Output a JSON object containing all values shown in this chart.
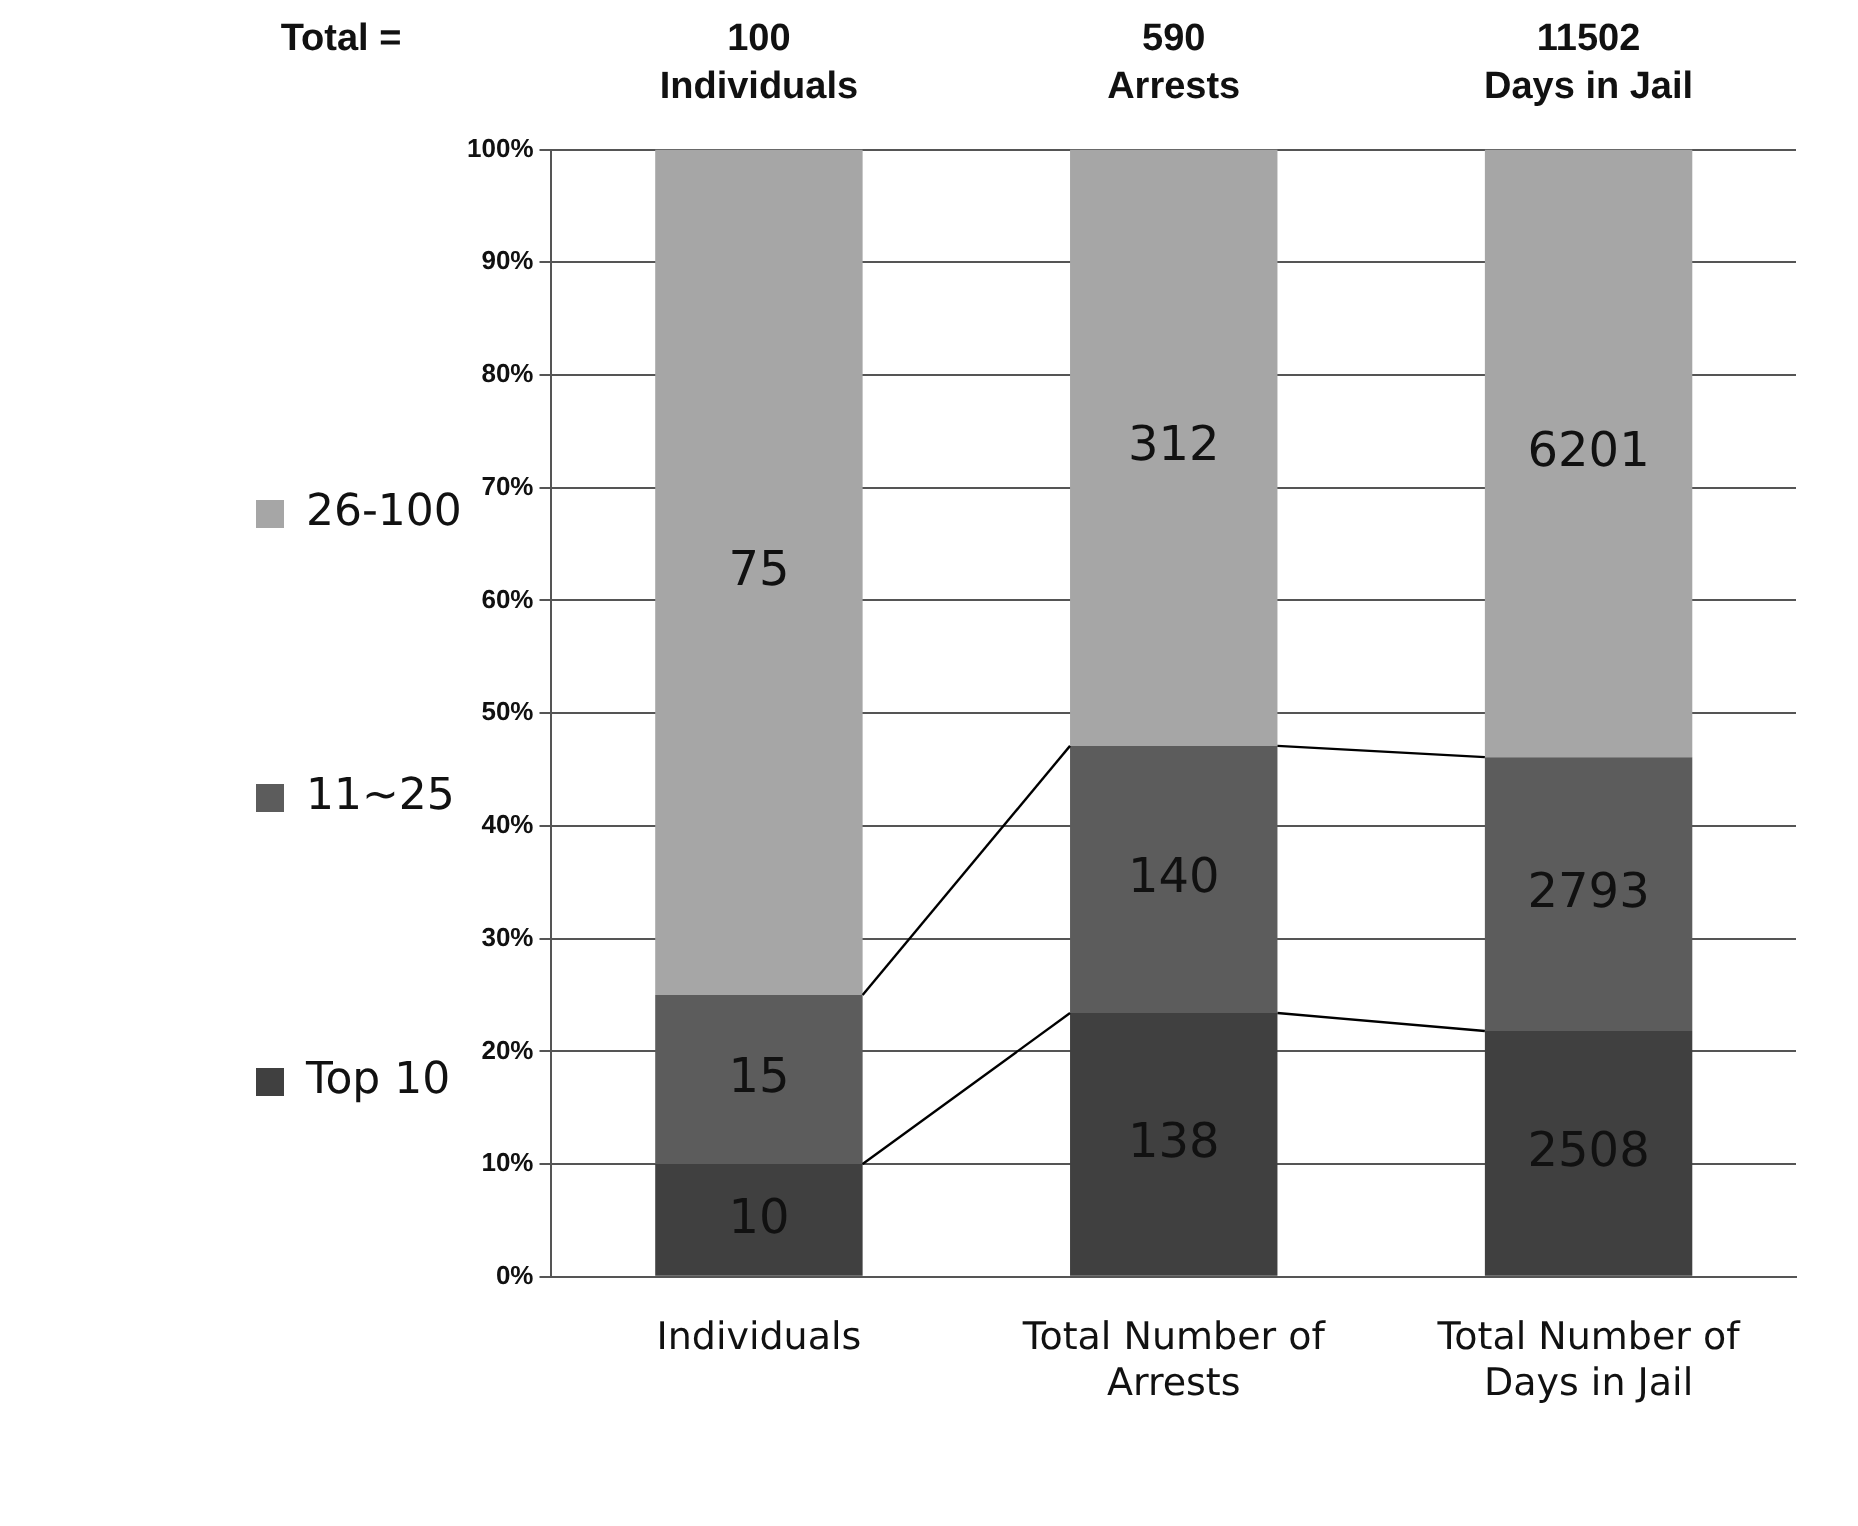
{
  "chart_data": {
    "type": "bar",
    "stacked": true,
    "categories": [
      "Individuals",
      "Total Number of Arrests",
      "Total Number of Days in Jail"
    ],
    "series": [
      {
        "name": "Top 10",
        "color": "#404040",
        "values": [
          10,
          23.4,
          21.8
        ]
      },
      {
        "name": "11~25",
        "color": "#5c5c5c",
        "values": [
          15,
          23.7,
          24.3
        ]
      },
      {
        "name": "26-100",
        "color": "#a6a6a6",
        "values": [
          75,
          52.9,
          53.9
        ]
      }
    ],
    "ylim": [
      0,
      100
    ],
    "yticks": [
      {
        "value": 0,
        "label": "0%"
      },
      {
        "value": 10,
        "label": "10%"
      },
      {
        "value": 20,
        "label": "20%"
      },
      {
        "value": 30,
        "label": "30%"
      },
      {
        "value": 40,
        "label": "40%"
      },
      {
        "value": 50,
        "label": "50%"
      },
      {
        "value": 60,
        "label": "60%"
      },
      {
        "value": 70,
        "label": "70%"
      },
      {
        "value": 80,
        "label": "80%"
      },
      {
        "value": 90,
        "label": "90%"
      },
      {
        "value": 100,
        "label": "100%"
      }
    ],
    "grid": "y",
    "legend": "left",
    "annotations": [
      "Total =",
      "100\nIndividuals",
      "590\nArrests",
      "11502\nDays in Jail",
      {
        "text": "10",
        "x": "Individuals",
        "y": 10
      },
      {
        "text": "15",
        "x": "Individuals",
        "y": 25
      },
      "75",
      {
        "text": "138",
        "x": "Total Number of Arrests",
        "y": 23.4
      },
      {
        "text": "140",
        "x": "Total Number of Arrests",
        "y": 47.1
      },
      "312",
      {
        "text": "2508",
        "x": "Total Number of Days in Jail",
        "y": 21.8
      },
      {
        "text": "2793",
        "x": "Total Number of Days in Jail",
        "y": 46.1
      },
      "6201"
    ]
  }
}
